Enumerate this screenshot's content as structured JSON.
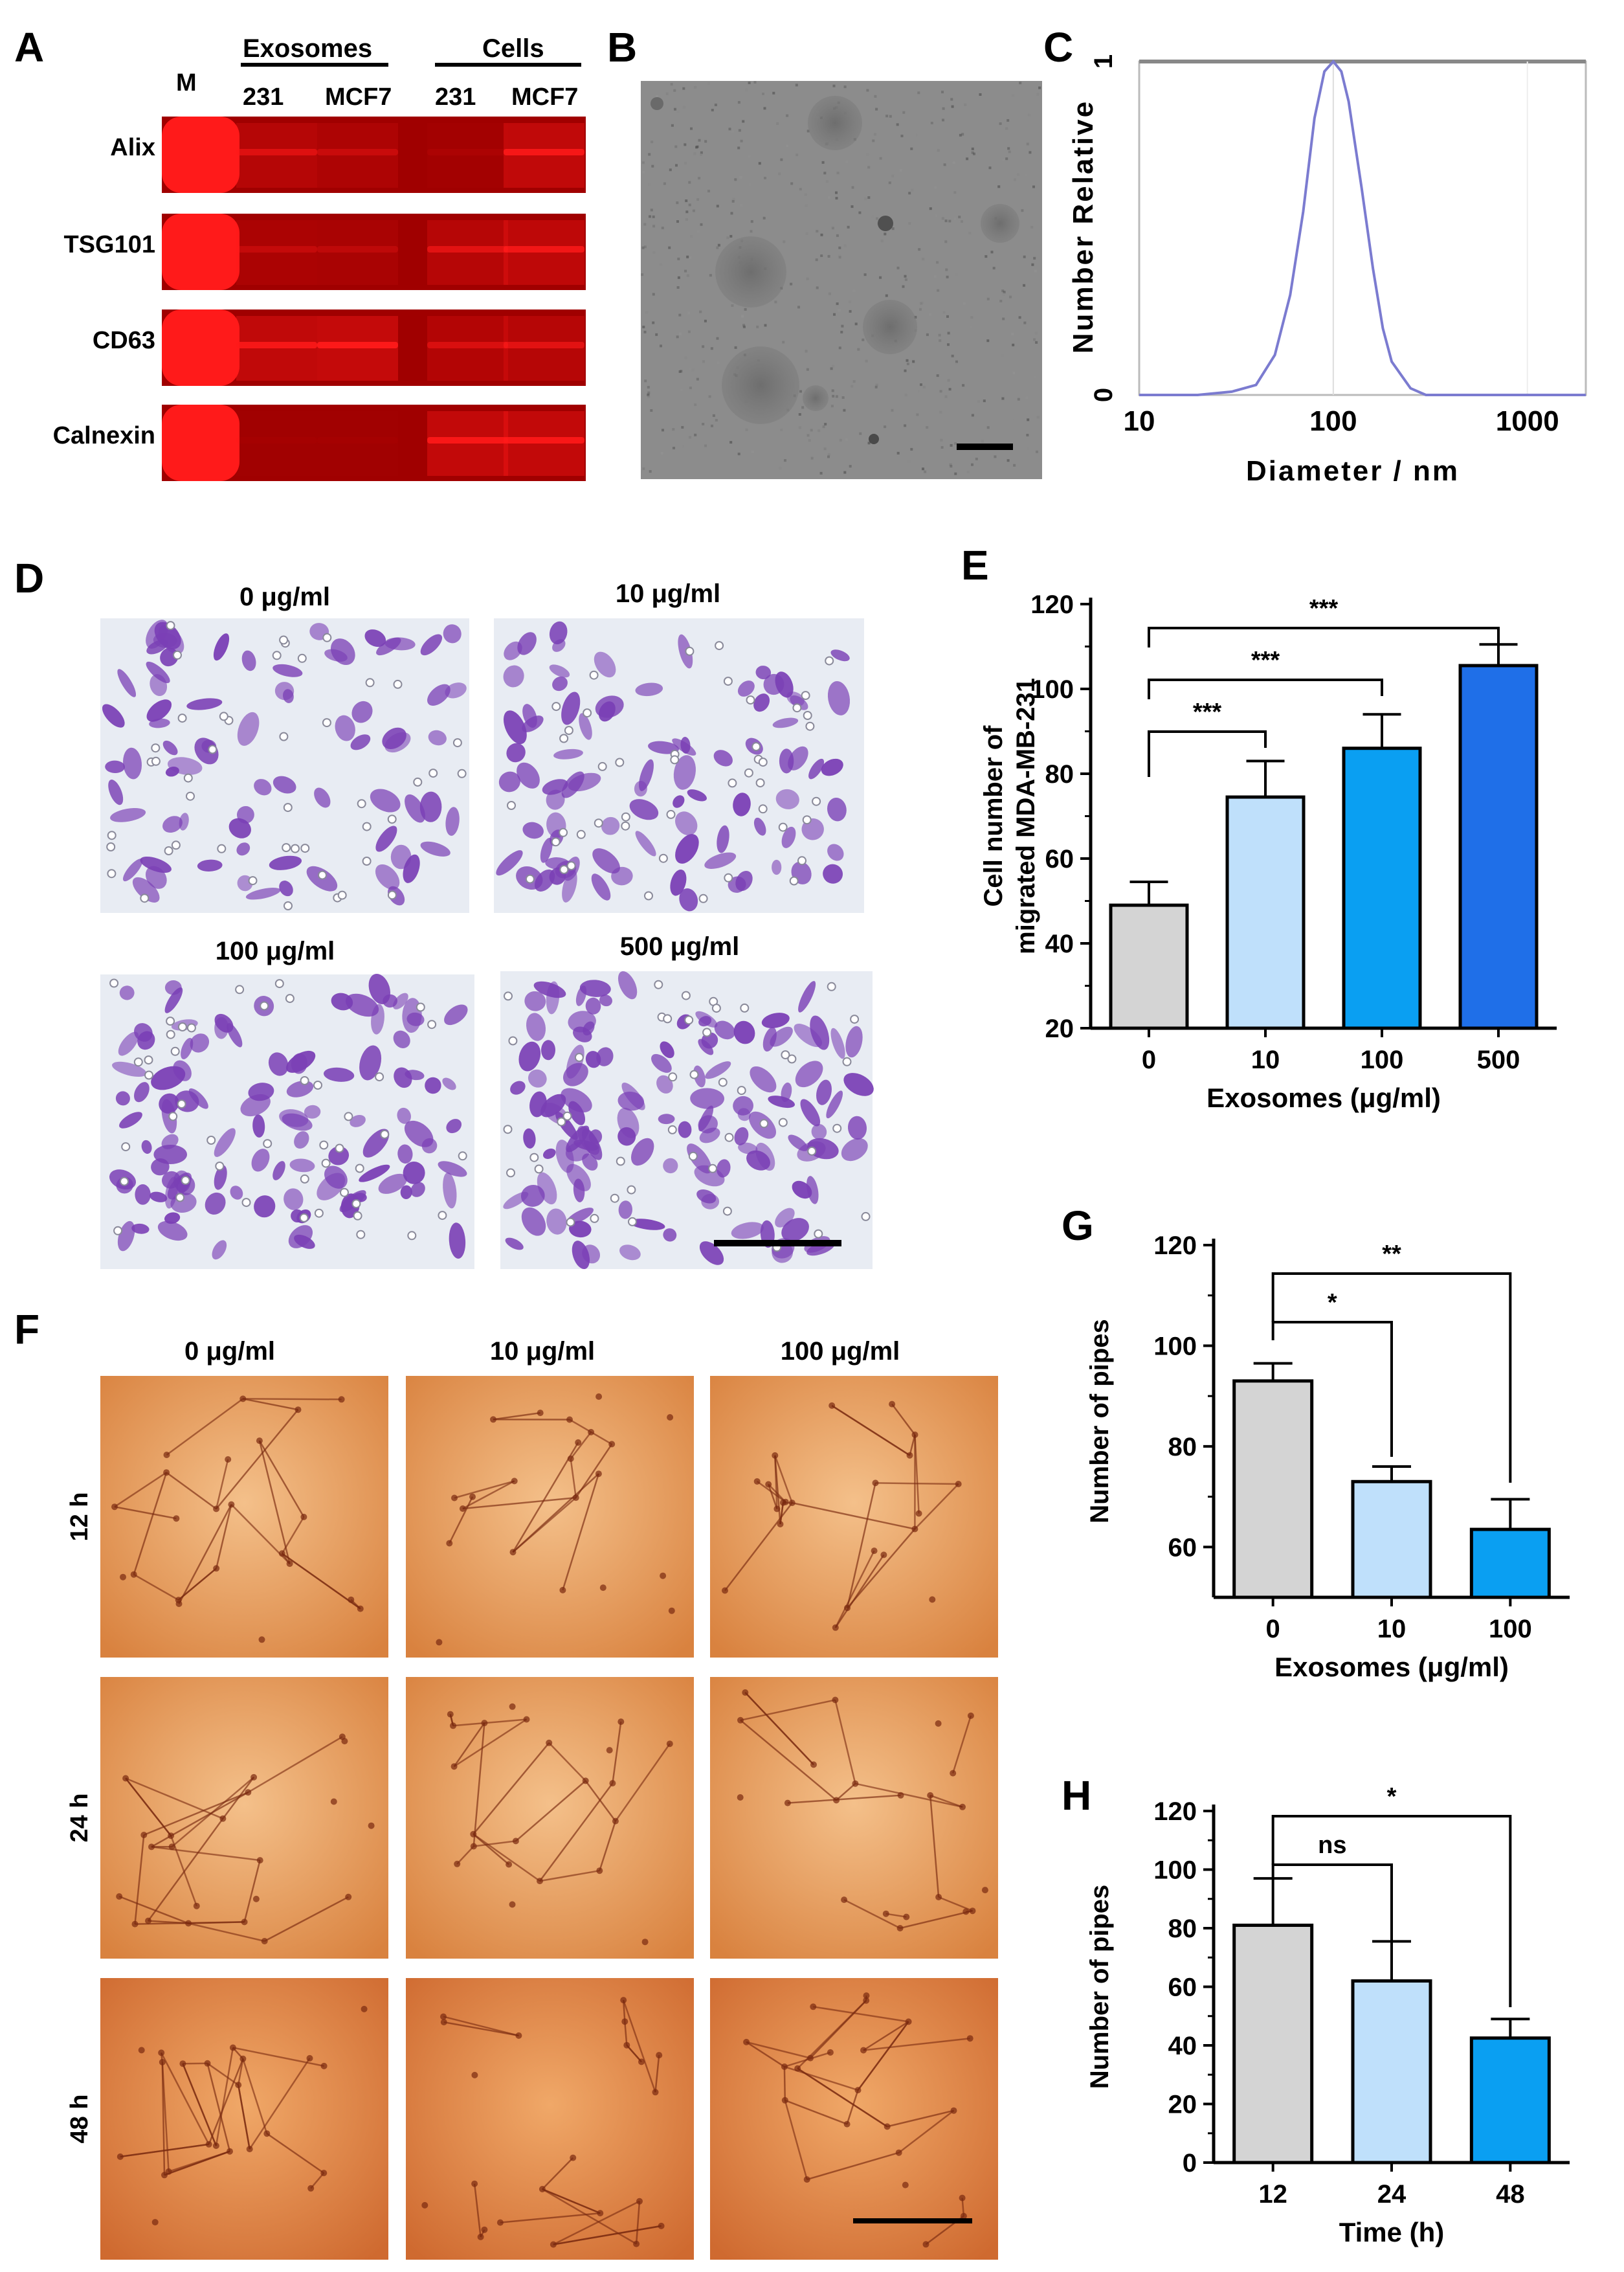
{
  "colors": {
    "western_band": "#ff1a1a",
    "western_bg": "#a00000",
    "tem_bg": "#8a8a8a",
    "dls_line": "#7b7bd0",
    "grey_bar": "#d4d4d4",
    "light_blue_bar": "#bfe0fb",
    "blue_bar": "#0a9ff2",
    "dark_blue_bar": "#1f6fe8",
    "transwell_bg": "#e8ecf3",
    "transwell_cell": "#7a3fb5",
    "tube_bg": "#e49a56",
    "tube_line": "#7a2a10"
  },
  "panel_a": {
    "letter": "A",
    "marker_label": "M",
    "group_exosomes": "Exosomes",
    "group_cells": "Cells",
    "lanes": [
      "231",
      "MCF7",
      "231",
      "MCF7"
    ],
    "blots": [
      {
        "label": "Alix",
        "band_intensity": [
          0.55,
          0.35,
          0.1,
          0.85
        ]
      },
      {
        "label": "TSG101",
        "band_intensity": [
          0.3,
          0.25,
          0.6,
          0.8
        ]
      },
      {
        "label": "CD63",
        "band_intensity": [
          0.85,
          0.95,
          0.5,
          0.6
        ]
      },
      {
        "label": "Calnexin",
        "band_intensity": [
          0.05,
          0.05,
          0.9,
          0.9
        ]
      }
    ]
  },
  "panel_b": {
    "letter": "B",
    "image_name": "exosome-tem-image"
  },
  "panel_c": {
    "letter": "C",
    "chart_data": {
      "type": "line",
      "xlabel": "Diameter / nm",
      "ylabel": "Number Relative",
      "x_scale": "log",
      "xlim": [
        10,
        2000
      ],
      "ylim": [
        0,
        1
      ],
      "x_ticks": [
        "10",
        "100",
        "1000"
      ],
      "y_ticks": [
        "0",
        "1"
      ],
      "series": [
        {
          "x": [
            10,
            20,
            30,
            40,
            50,
            60,
            70,
            80,
            90,
            100,
            110,
            120,
            140,
            160,
            180,
            200,
            250,
            300,
            400,
            500,
            1000,
            2000
          ],
          "values": [
            0.0,
            0.0,
            0.01,
            0.03,
            0.12,
            0.3,
            0.55,
            0.83,
            0.97,
            1.0,
            0.97,
            0.88,
            0.62,
            0.38,
            0.2,
            0.1,
            0.02,
            0.0,
            0.0,
            0.0,
            0.0,
            0.0
          ]
        }
      ]
    }
  },
  "panel_d": {
    "letter": "D",
    "images": [
      {
        "label": "0 μg/ml",
        "cell_density": 0.35
      },
      {
        "label": "10 μg/ml",
        "cell_density": 0.5
      },
      {
        "label": "100  μg/ml",
        "cell_density": 0.7
      },
      {
        "label": "500  μg/ml",
        "cell_density": 0.9
      }
    ]
  },
  "panel_e": {
    "letter": "E",
    "chart_data": {
      "type": "bar",
      "categories": [
        "0",
        "10",
        "100",
        "500"
      ],
      "values": [
        49,
        74.5,
        86,
        105.5
      ],
      "errors": [
        5.5,
        8.5,
        8,
        5
      ],
      "xlabel": "Exosomes (μg/ml)",
      "ylabel": [
        "Cell number of",
        "migrated MDA-MB-231"
      ],
      "ylim": [
        20,
        120
      ],
      "y_ticks": [
        "20",
        "40",
        "60",
        "80",
        "100",
        "120"
      ],
      "significance": [
        {
          "from": "0",
          "to": "10",
          "label": "***"
        },
        {
          "from": "0",
          "to": "100",
          "label": "***"
        },
        {
          "from": "0",
          "to": "500",
          "label": "***"
        }
      ]
    }
  },
  "panel_f": {
    "letter": "F",
    "column_labels": [
      "0 μg/ml",
      "10 μg/ml",
      "100  μg/ml"
    ],
    "row_labels": [
      "12 h",
      "24 h",
      "48 h"
    ]
  },
  "panel_g": {
    "letter": "G",
    "chart_data": {
      "type": "bar",
      "categories": [
        "0",
        "10",
        "100"
      ],
      "values": [
        93,
        73,
        63.5
      ],
      "errors": [
        3.5,
        3,
        6
      ],
      "xlabel": "Exosomes (μg/ml)",
      "ylabel": "Number of pipes",
      "ylim": [
        50,
        120
      ],
      "y_ticks": [
        "60",
        "80",
        "100",
        "120"
      ],
      "significance": [
        {
          "from": "0",
          "to": "10",
          "label": "*"
        },
        {
          "from": "0",
          "to": "100",
          "label": "**"
        }
      ]
    }
  },
  "panel_h": {
    "letter": "H",
    "chart_data": {
      "type": "bar",
      "categories": [
        "12",
        "24",
        "48"
      ],
      "values": [
        81,
        62,
        42.5
      ],
      "errors": [
        16,
        13.5,
        6.5
      ],
      "xlabel": "Time (h)",
      "ylabel": "Number of pipes",
      "ylim": [
        0,
        120
      ],
      "y_ticks": [
        "0",
        "20",
        "40",
        "60",
        "80",
        "100",
        "120"
      ],
      "significance": [
        {
          "from": "12",
          "to": "24",
          "label": "ns"
        },
        {
          "from": "12",
          "to": "48",
          "label": "*"
        }
      ]
    }
  }
}
